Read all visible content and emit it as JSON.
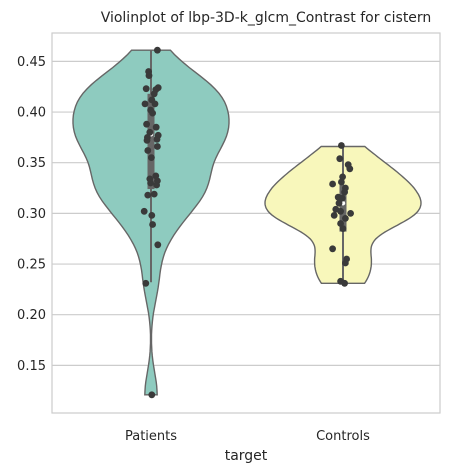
{
  "chart_data": {
    "type": "violin",
    "title": "Violinplot of lbp-3D-k_glcm_Contrast for cistern",
    "xlabel": "target",
    "ylabel": "",
    "categories": [
      "Patients",
      "Controls"
    ],
    "colors": [
      "#8ecbbf",
      "#f8f7bb"
    ],
    "grid": true,
    "ylim": [
      0.103,
      0.478
    ],
    "yticks": [
      0.15,
      0.2,
      0.25,
      0.3,
      0.35,
      0.4,
      0.45
    ],
    "ytick_labels": [
      "0.15",
      "0.20",
      "0.25",
      "0.30",
      "0.35",
      "0.40",
      "0.45"
    ],
    "groups": [
      {
        "name": "Patients",
        "min": 0.121,
        "q1": 0.324,
        "median": 0.378,
        "q3": 0.418,
        "max": 0.461,
        "whisker_low": 0.232,
        "whisker_high": 0.461,
        "points": [
          {
            "x": 0.8,
            "y": 0.461
          },
          {
            "x": -0.3,
            "y": 0.44
          },
          {
            "x": -0.25,
            "y": 0.436
          },
          {
            "x": 0.9,
            "y": 0.424
          },
          {
            "x": 0.6,
            "y": 0.422
          },
          {
            "x": -0.6,
            "y": 0.423
          },
          {
            "x": 0.4,
            "y": 0.418
          },
          {
            "x": 0.1,
            "y": 0.412
          },
          {
            "x": -0.75,
            "y": 0.408
          },
          {
            "x": 0.5,
            "y": 0.408
          },
          {
            "x": -0.05,
            "y": 0.402
          },
          {
            "x": 0.2,
            "y": 0.399
          },
          {
            "x": -0.55,
            "y": 0.388
          },
          {
            "x": 0.65,
            "y": 0.385
          },
          {
            "x": -0.15,
            "y": 0.38
          },
          {
            "x": 0.9,
            "y": 0.377
          },
          {
            "x": -0.45,
            "y": 0.375
          },
          {
            "x": 0.75,
            "y": 0.373
          },
          {
            "x": -0.5,
            "y": 0.372
          },
          {
            "x": 0.8,
            "y": 0.366
          },
          {
            "x": -0.4,
            "y": 0.362
          },
          {
            "x": 0.05,
            "y": 0.355
          },
          {
            "x": 0.6,
            "y": 0.337
          },
          {
            "x": 0.8,
            "y": 0.332
          },
          {
            "x": -0.15,
            "y": 0.334
          },
          {
            "x": -0.05,
            "y": 0.33
          },
          {
            "x": 0.7,
            "y": 0.328
          },
          {
            "x": -0.4,
            "y": 0.318
          },
          {
            "x": 0.4,
            "y": 0.319
          },
          {
            "x": -0.85,
            "y": 0.302
          },
          {
            "x": 0.1,
            "y": 0.298
          },
          {
            "x": 0.2,
            "y": 0.289
          },
          {
            "x": 0.85,
            "y": 0.269
          },
          {
            "x": -0.65,
            "y": 0.231
          },
          {
            "x": 0.1,
            "y": 0.121
          }
        ]
      },
      {
        "name": "Controls",
        "min": 0.231,
        "q1": 0.282,
        "median": 0.31,
        "q3": 0.328,
        "max": 0.366,
        "whisker_low": 0.231,
        "whisker_high": 0.366,
        "points": [
          {
            "x": -0.2,
            "y": 0.367
          },
          {
            "x": -0.4,
            "y": 0.354
          },
          {
            "x": 0.65,
            "y": 0.348
          },
          {
            "x": 0.85,
            "y": 0.344
          },
          {
            "x": -0.05,
            "y": 0.336
          },
          {
            "x": -0.2,
            "y": 0.331
          },
          {
            "x": -1.3,
            "y": 0.329
          },
          {
            "x": 0.3,
            "y": 0.325
          },
          {
            "x": 0.2,
            "y": 0.321
          },
          {
            "x": -0.6,
            "y": 0.316
          },
          {
            "x": -0.1,
            "y": 0.315
          },
          {
            "x": -0.5,
            "y": 0.31
          },
          {
            "x": -0.9,
            "y": 0.304
          },
          {
            "x": -0.3,
            "y": 0.302
          },
          {
            "x": 0.95,
            "y": 0.3
          },
          {
            "x": -1.1,
            "y": 0.298
          },
          {
            "x": 0.3,
            "y": 0.295
          },
          {
            "x": -0.3,
            "y": 0.29
          },
          {
            "x": 0.0,
            "y": 0.285
          },
          {
            "x": -1.3,
            "y": 0.265
          },
          {
            "x": 0.45,
            "y": 0.255
          },
          {
            "x": 0.3,
            "y": 0.251
          },
          {
            "x": -0.3,
            "y": 0.233
          },
          {
            "x": 0.2,
            "y": 0.231
          }
        ]
      }
    ]
  }
}
